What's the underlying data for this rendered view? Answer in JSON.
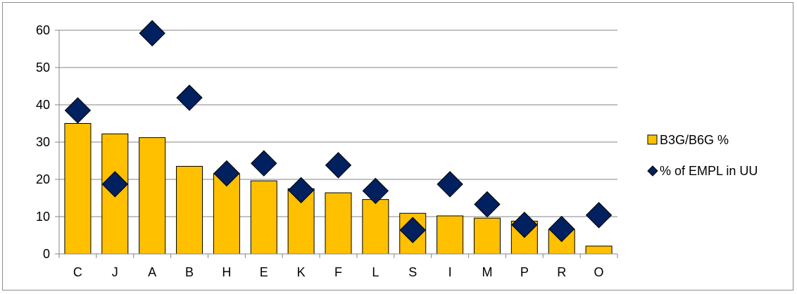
{
  "chart_data": {
    "type": "bar",
    "categories": [
      "C",
      "J",
      "A",
      "B",
      "H",
      "E",
      "K",
      "F",
      "L",
      "S",
      "I",
      "M",
      "P",
      "R",
      "O"
    ],
    "series": [
      {
        "name": "B3G/B6G %",
        "type": "bar",
        "color": "#FFC000",
        "values": [
          35.0,
          32.2,
          31.2,
          23.5,
          21.5,
          19.6,
          17.5,
          16.4,
          14.6,
          10.9,
          10.2,
          9.6,
          8.8,
          6.5,
          2.1
        ]
      },
      {
        "name": "% of EMPL in UU",
        "type": "scatter",
        "marker": "diamond",
        "color": "#002060",
        "values": [
          38.5,
          18.7,
          59.2,
          41.9,
          21.6,
          24.3,
          17.1,
          23.8,
          16.9,
          6.4,
          18.7,
          13.3,
          7.8,
          6.7,
          10.4
        ]
      }
    ],
    "y_ticks": [
      "0",
      "10",
      "20",
      "30",
      "40",
      "50",
      "60"
    ],
    "ylim": [
      0,
      60
    ],
    "grid": true,
    "legend": "right"
  }
}
